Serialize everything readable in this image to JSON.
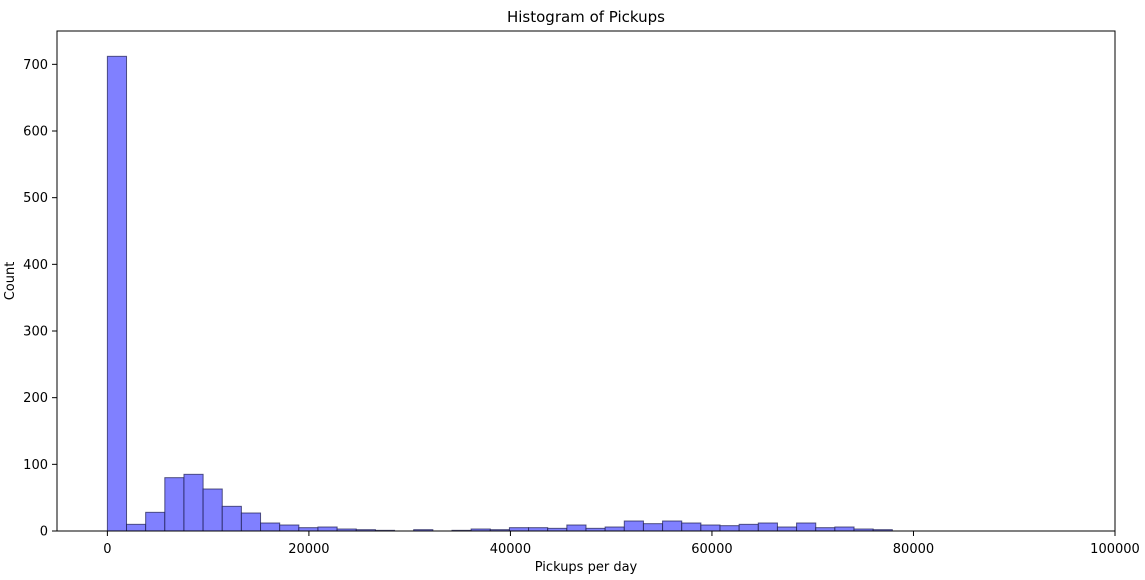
{
  "chart_data": {
    "type": "bar",
    "title": "Histogram of Pickups",
    "xlabel": "Pickups per day",
    "ylabel": "Count",
    "xlim": [
      -5000,
      100000
    ],
    "ylim": [
      0,
      750
    ],
    "xticks": [
      0,
      20000,
      40000,
      60000,
      80000,
      100000
    ],
    "yticks": [
      0,
      100,
      200,
      300,
      400,
      500,
      600,
      700
    ],
    "bin_width": 1900,
    "bin_start": 0,
    "values": [
      712,
      10,
      28,
      80,
      85,
      63,
      37,
      27,
      12,
      9,
      5,
      6,
      3,
      2,
      1,
      0,
      2,
      0,
      1,
      3,
      2,
      5,
      5,
      4,
      9,
      4,
      6,
      15,
      11,
      15,
      12,
      9,
      8,
      10,
      12,
      6,
      12,
      5,
      6,
      3,
      2,
      0,
      0,
      0,
      0,
      0,
      0,
      0,
      0,
      0
    ],
    "grid": false,
    "colors": {
      "bar_fill": "#8080ff",
      "bar_edge": "#1a1a4d"
    }
  }
}
